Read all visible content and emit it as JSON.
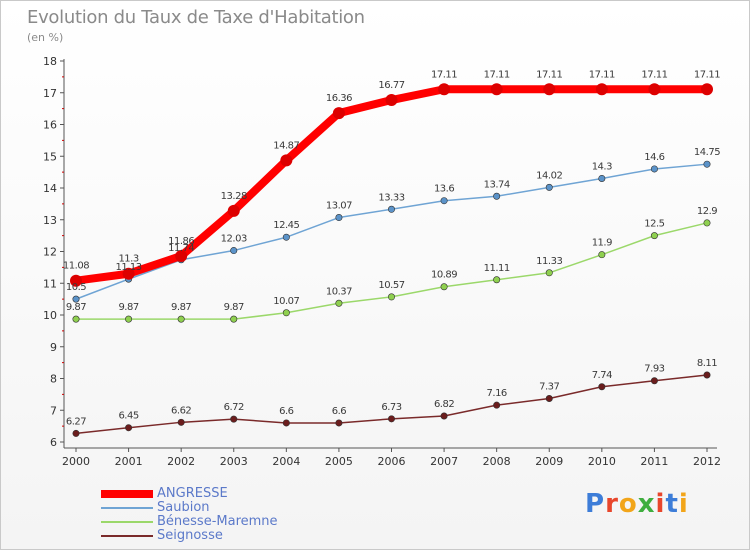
{
  "title": "Evolution du Taux de Taxe d'Habitation",
  "subtitle": "(en %)",
  "brand": {
    "text": "Proxiti",
    "colors": [
      "#3d7dd8",
      "#e8462b",
      "#f2a51a",
      "#3fae3f",
      "#e8462b",
      "#3d7dd8",
      "#f2a51a"
    ]
  },
  "chart_data": {
    "type": "line",
    "x": [
      "2000",
      "2001",
      "2002",
      "2003",
      "2004",
      "2005",
      "2006",
      "2007",
      "2008",
      "2009",
      "2010",
      "2011",
      "2012"
    ],
    "y_ticks": [
      "6",
      "7",
      "8",
      "9",
      "10",
      "11",
      "12",
      "13",
      "14",
      "15",
      "16",
      "17",
      "18"
    ],
    "ylim": [
      6,
      18
    ],
    "grid": false,
    "legend_position": "bottom-left",
    "series": [
      {
        "name": "ANGRESSE",
        "color": "#ff0000",
        "marker": "#dd0000",
        "emphasis": true,
        "values": [
          11.08,
          11.3,
          11.86,
          13.28,
          14.87,
          16.36,
          16.77,
          17.11,
          17.11,
          17.11,
          17.11,
          17.11,
          17.11
        ],
        "labels": [
          "11.08",
          "11.3",
          "11.86",
          "13.28",
          "14.87",
          "16.36",
          "16.77",
          "17.11",
          "17.11",
          "17.11",
          "17.11",
          "17.11",
          "17.11"
        ]
      },
      {
        "name": "Saubion",
        "color": "#6fa4d4",
        "marker": "#5b93c9",
        "emphasis": false,
        "values": [
          10.5,
          11.13,
          11.74,
          12.03,
          12.45,
          13.07,
          13.33,
          13.6,
          13.74,
          14.02,
          14.3,
          14.6,
          14.75
        ],
        "labels": [
          "10.5",
          "11.13",
          "11.74",
          "12.03",
          "12.45",
          "13.07",
          "13.33",
          "13.6",
          "13.74",
          "14.02",
          "14.3",
          "14.6",
          "14.75"
        ]
      },
      {
        "name": "Bénesse-Maremne",
        "color": "#9bd86a",
        "marker": "#8fd04f",
        "emphasis": false,
        "values": [
          9.87,
          9.87,
          9.87,
          9.87,
          10.07,
          10.37,
          10.57,
          10.89,
          11.11,
          11.33,
          11.9,
          12.5,
          12.9
        ],
        "labels": [
          "9.87",
          "9.87",
          "9.87",
          "9.87",
          "10.07",
          "10.37",
          "10.57",
          "10.89",
          "11.11",
          "11.33",
          "11.9",
          "12.5",
          "12.9"
        ]
      },
      {
        "name": "Seignosse",
        "color": "#7a2a2a",
        "marker": "#6b1d1d",
        "emphasis": false,
        "values": [
          6.27,
          6.45,
          6.62,
          6.72,
          6.6,
          6.6,
          6.73,
          6.82,
          7.16,
          7.37,
          7.74,
          7.93,
          8.11
        ],
        "labels": [
          "6.27",
          "6.45",
          "6.62",
          "6.72",
          "6.6",
          "6.6",
          "6.73",
          "6.82",
          "7.16",
          "7.37",
          "7.74",
          "7.93",
          "8.11"
        ]
      }
    ]
  }
}
